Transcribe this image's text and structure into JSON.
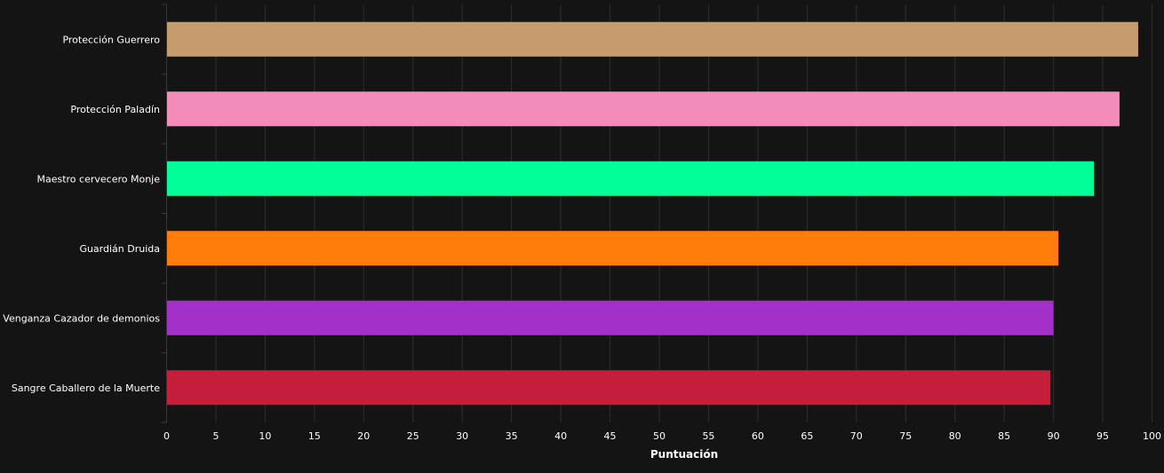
{
  "chart_data": {
    "type": "bar",
    "orientation": "horizontal",
    "categories": [
      "Protección Guerrero",
      "Protección Paladín",
      "Maestro cervecero Monje",
      "Guardián Druida",
      "Venganza Cazador de demonios",
      "Sangre Caballero de la Muerte"
    ],
    "values": [
      98.6,
      96.7,
      94.1,
      90.5,
      90.0,
      89.7
    ],
    "colors": [
      "#c69b6d",
      "#f48cba",
      "#00ff98",
      "#ff7c0a",
      "#a330c9",
      "#c41e3a"
    ],
    "xlabel": "Puntuación",
    "ylabel": "",
    "xlim": [
      0,
      100
    ],
    "xticks": [
      "0",
      "5",
      "10",
      "15",
      "20",
      "25",
      "30",
      "35",
      "40",
      "45",
      "50",
      "55",
      "60",
      "65",
      "70",
      "75",
      "80",
      "85",
      "90",
      "95",
      "100"
    ],
    "grid": "vertical",
    "background": "#141414"
  }
}
